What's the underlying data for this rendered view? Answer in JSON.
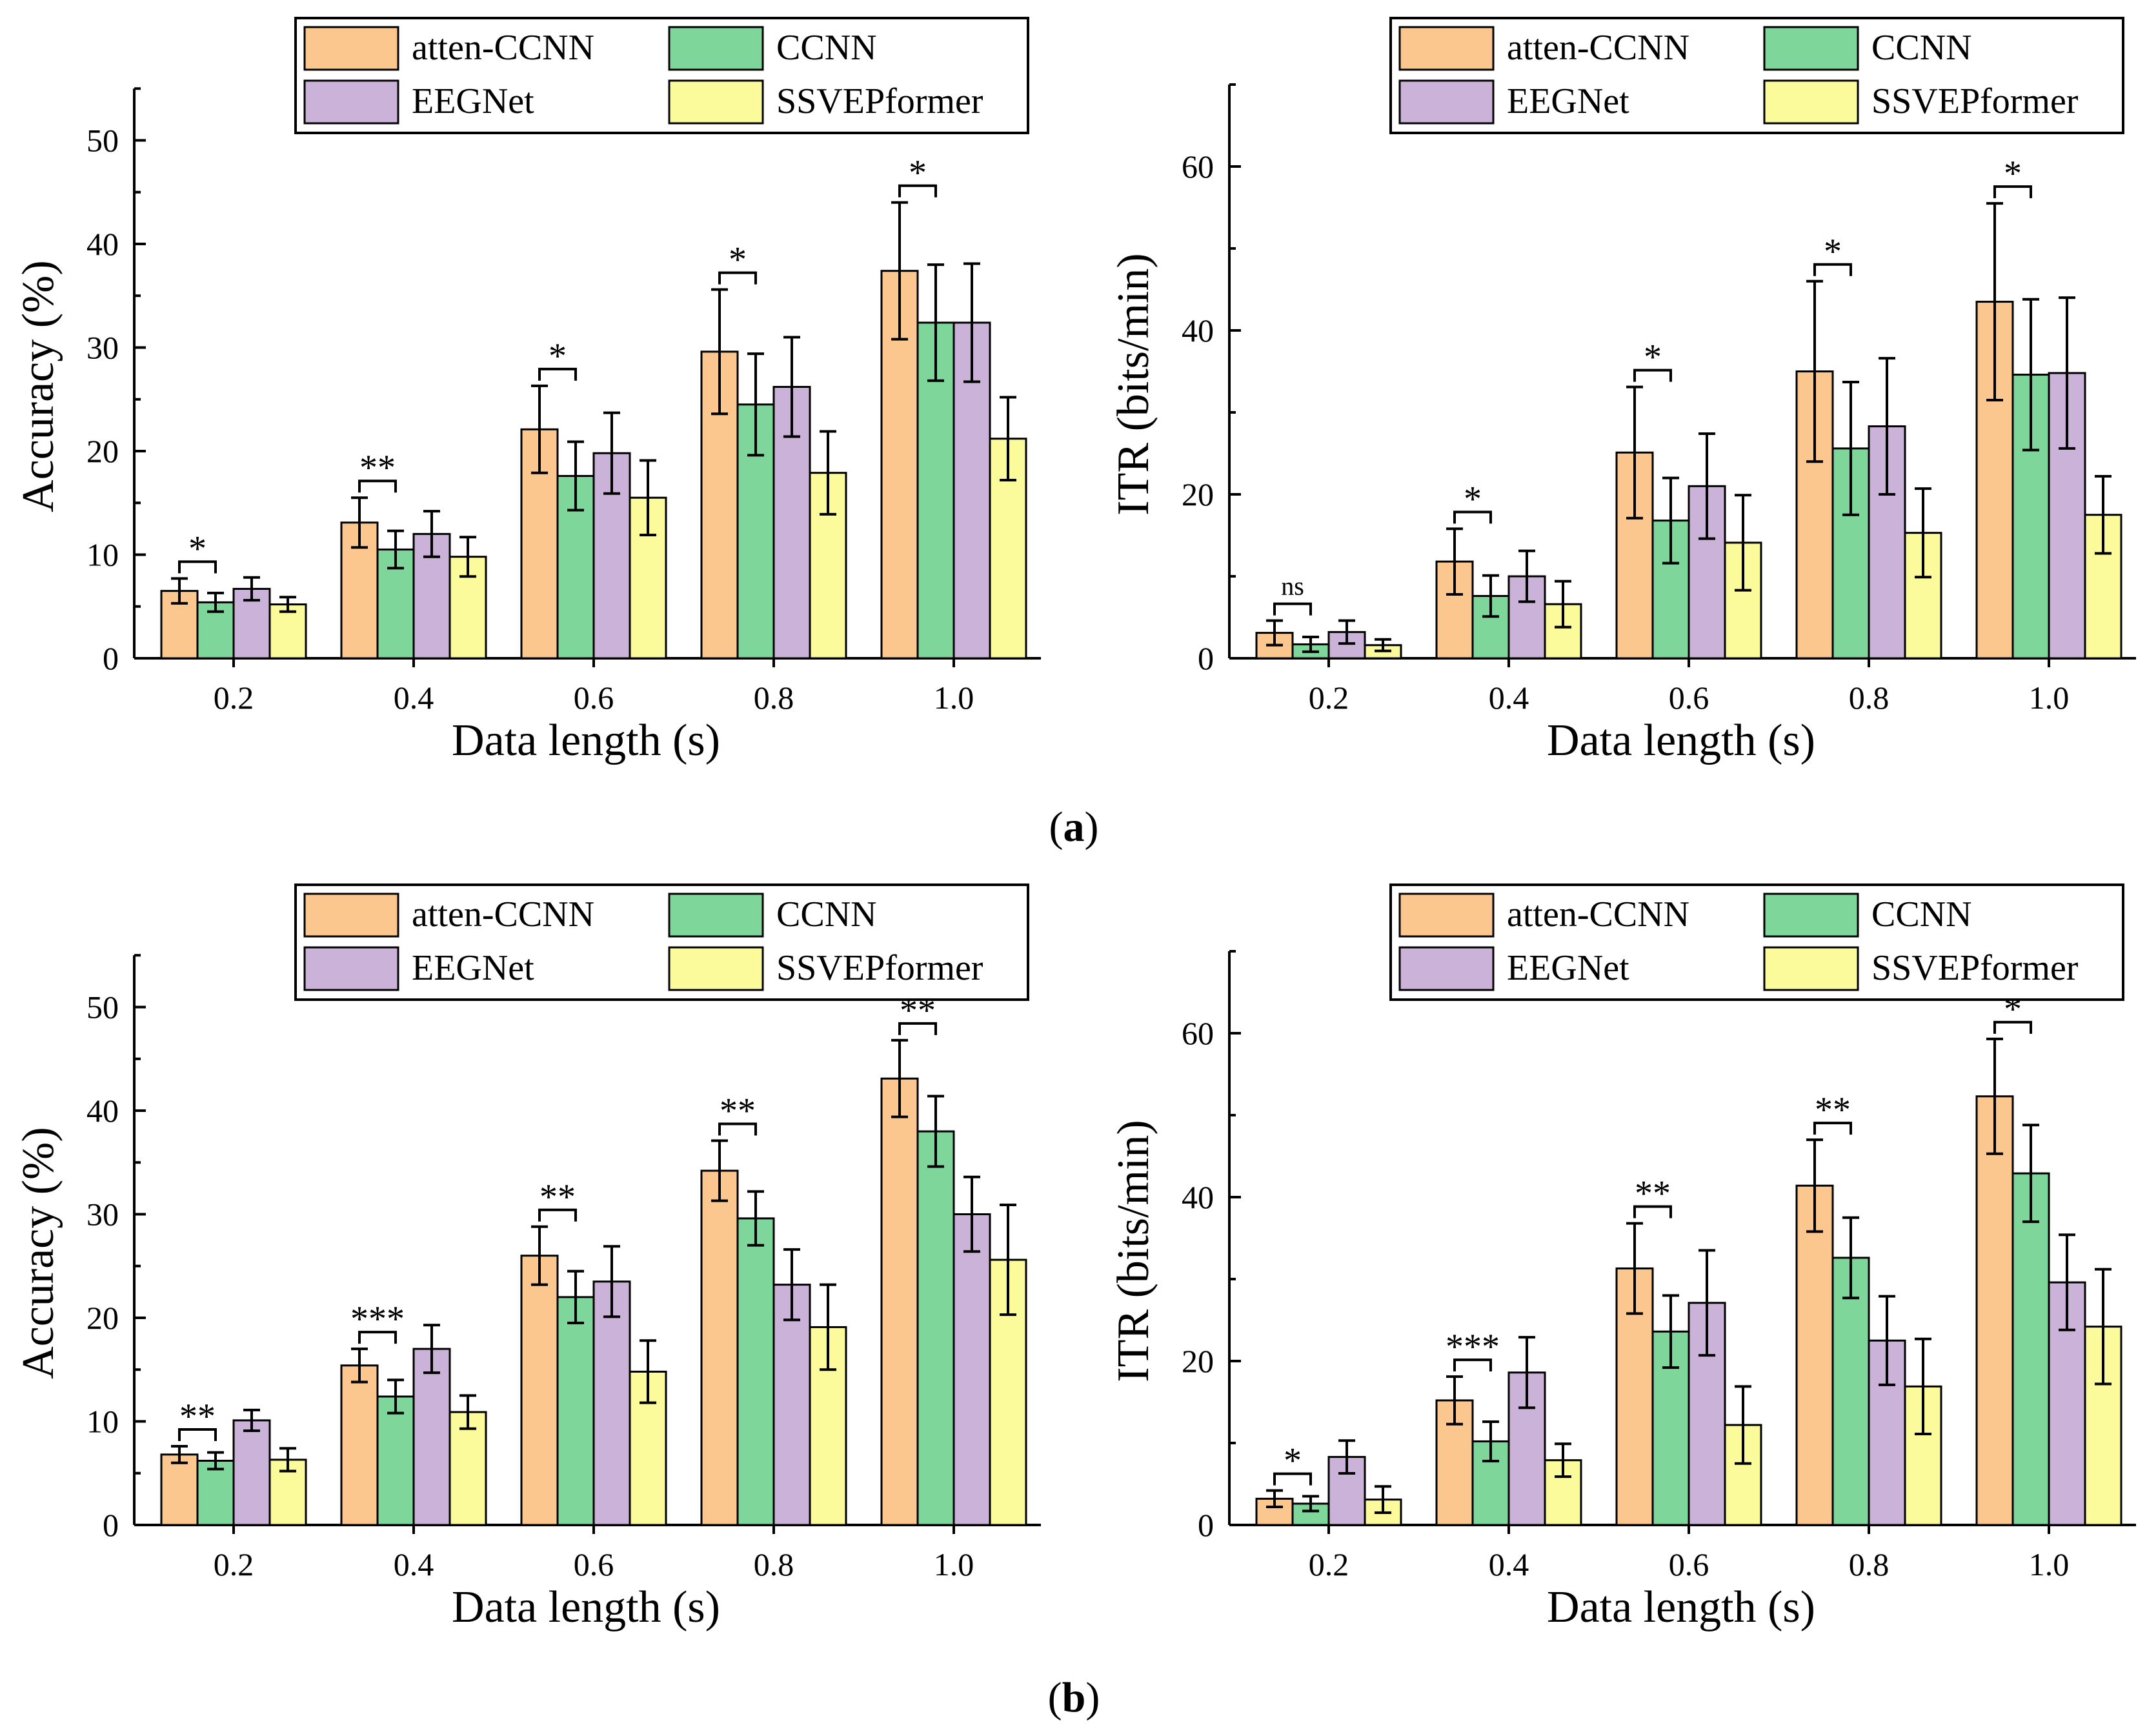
{
  "legend": {
    "entries": [
      "atten-CCNN",
      "CCNN",
      "EEGNet",
      "SSVEPformer"
    ],
    "colors": [
      "#fcc78e",
      "#7fd69a",
      "#cbb2d8",
      "#fbfb9c"
    ]
  },
  "captions": {
    "a": "a",
    "b": "b"
  },
  "chart_data": [
    {
      "type": "bar",
      "panel": "a-left",
      "xlabel": "Data length (s)",
      "ylabel": "Accuracy (%)",
      "ylim": [
        0,
        55
      ],
      "yticks": [
        0,
        10,
        20,
        30,
        40,
        50
      ],
      "categories": [
        "0.2",
        "0.4",
        "0.6",
        "0.8",
        "1.0"
      ],
      "series": [
        {
          "name": "atten-CCNN",
          "values": [
            6.5,
            13.1,
            22.1,
            29.6,
            37.4
          ],
          "errors": [
            1.2,
            2.4,
            4.2,
            6.0,
            6.6
          ]
        },
        {
          "name": "CCNN",
          "values": [
            5.4,
            10.5,
            17.6,
            24.5,
            32.4
          ],
          "errors": [
            0.9,
            1.8,
            3.3,
            4.9,
            5.6
          ]
        },
        {
          "name": "EEGNet",
          "values": [
            6.7,
            12.0,
            19.8,
            26.2,
            32.4
          ],
          "errors": [
            1.1,
            2.2,
            3.9,
            4.8,
            5.7
          ]
        },
        {
          "name": "SSVEPformer",
          "values": [
            5.2,
            9.8,
            15.5,
            17.9,
            21.2
          ],
          "errors": [
            0.7,
            1.9,
            3.6,
            4.0,
            4.0
          ]
        }
      ],
      "significance": [
        "*",
        "**",
        "*",
        "*",
        "*"
      ]
    },
    {
      "type": "bar",
      "panel": "a-right",
      "xlabel": "Data length (s)",
      "ylabel": "ITR (bits/min)",
      "ylim": [
        0,
        70
      ],
      "yticks": [
        0,
        20,
        40,
        60
      ],
      "categories": [
        "0.2",
        "0.4",
        "0.6",
        "0.8",
        "1.0"
      ],
      "series": [
        {
          "name": "atten-CCNN",
          "values": [
            3.1,
            11.8,
            25.1,
            35.0,
            43.5
          ],
          "errors": [
            1.5,
            4.0,
            8.0,
            11.0,
            12.0
          ]
        },
        {
          "name": "CCNN",
          "values": [
            1.7,
            7.6,
            16.8,
            25.6,
            34.6
          ],
          "errors": [
            0.9,
            2.5,
            5.2,
            8.1,
            9.2
          ]
        },
        {
          "name": "EEGNet",
          "values": [
            3.2,
            10.0,
            21.0,
            28.3,
            34.8
          ],
          "errors": [
            1.4,
            3.1,
            6.4,
            8.3,
            9.2
          ]
        },
        {
          "name": "SSVEPformer",
          "values": [
            1.6,
            6.6,
            14.1,
            15.3,
            17.5
          ],
          "errors": [
            0.7,
            2.8,
            5.8,
            5.4,
            4.7
          ]
        }
      ],
      "significance": [
        "ns",
        "*",
        "*",
        "*",
        "*"
      ]
    },
    {
      "type": "bar",
      "panel": "b-left",
      "xlabel": "Data length (s)",
      "ylabel": "Accuracy (%)",
      "ylim": [
        0,
        55
      ],
      "yticks": [
        0,
        10,
        20,
        30,
        40,
        50
      ],
      "categories": [
        "0.2",
        "0.4",
        "0.6",
        "0.8",
        "1.0"
      ],
      "series": [
        {
          "name": "atten-CCNN",
          "values": [
            6.8,
            15.4,
            26.0,
            34.2,
            43.1
          ],
          "errors": [
            0.8,
            1.6,
            2.8,
            2.9,
            3.7
          ]
        },
        {
          "name": "CCNN",
          "values": [
            6.2,
            12.4,
            22.0,
            29.6,
            38.0
          ],
          "errors": [
            0.8,
            1.6,
            2.5,
            2.6,
            3.4
          ]
        },
        {
          "name": "EEGNet",
          "values": [
            10.1,
            17.0,
            23.5,
            23.2,
            30.0
          ],
          "errors": [
            1.0,
            2.3,
            3.4,
            3.4,
            3.6
          ]
        },
        {
          "name": "SSVEPformer",
          "values": [
            6.3,
            10.9,
            14.8,
            19.1,
            25.6
          ],
          "errors": [
            1.1,
            1.6,
            3.0,
            4.1,
            5.3
          ]
        }
      ],
      "significance": [
        "**",
        "***",
        "**",
        "**",
        "**"
      ]
    },
    {
      "type": "bar",
      "panel": "b-right",
      "xlabel": "Data length (s)",
      "ylabel": "ITR (bits/min)",
      "ylim": [
        0,
        70
      ],
      "yticks": [
        0,
        20,
        40,
        60
      ],
      "categories": [
        "0.2",
        "0.4",
        "0.6",
        "0.8",
        "1.0"
      ],
      "series": [
        {
          "name": "atten-CCNN",
          "values": [
            3.2,
            15.2,
            31.3,
            41.4,
            52.3
          ],
          "errors": [
            1.0,
            2.9,
            5.5,
            5.6,
            7.0
          ]
        },
        {
          "name": "CCNN",
          "values": [
            2.6,
            10.2,
            23.6,
            32.6,
            42.9
          ],
          "errors": [
            0.9,
            2.4,
            4.4,
            4.9,
            5.9
          ]
        },
        {
          "name": "EEGNet",
          "values": [
            8.3,
            18.6,
            27.1,
            22.5,
            29.6
          ],
          "errors": [
            2.0,
            4.3,
            6.4,
            5.4,
            5.8
          ]
        },
        {
          "name": "SSVEPformer",
          "values": [
            3.1,
            7.9,
            12.2,
            16.9,
            24.2
          ],
          "errors": [
            1.6,
            2.0,
            4.7,
            5.8,
            7.0
          ]
        }
      ],
      "significance": [
        "*",
        "***",
        "**",
        "**",
        "*"
      ]
    }
  ]
}
